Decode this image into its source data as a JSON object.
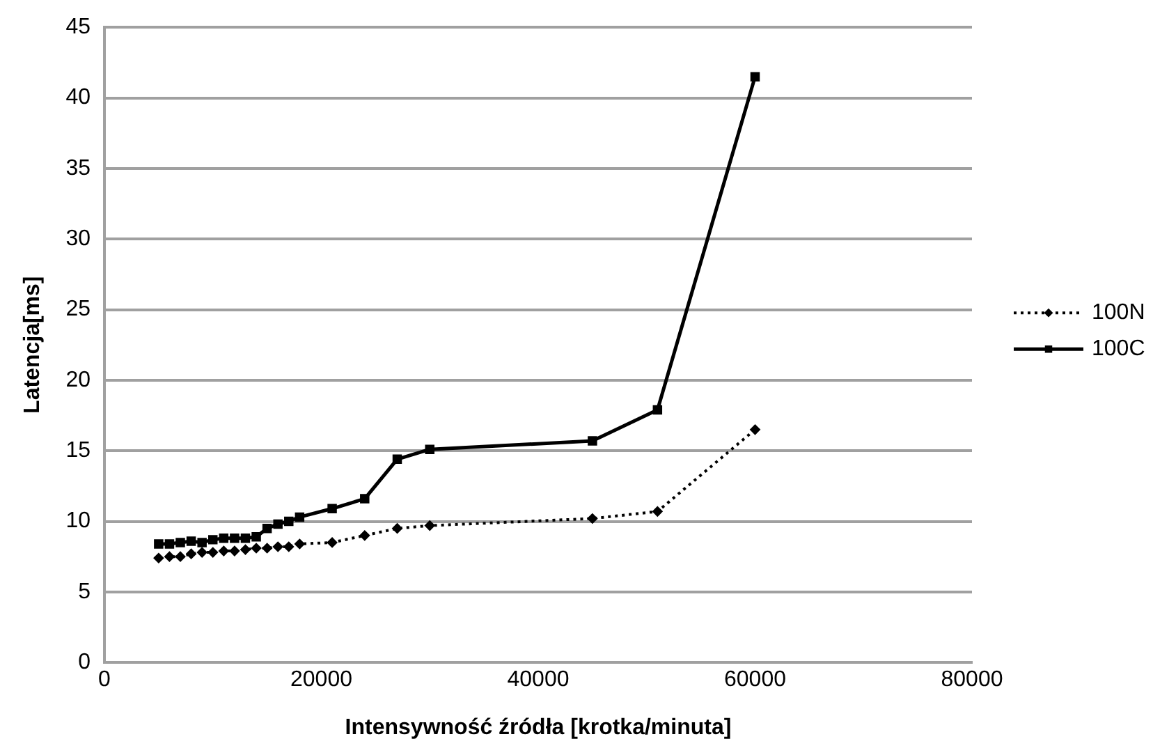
{
  "chart_data": {
    "type": "line",
    "xlabel": "Intensywność źródła [krotka/minuta]",
    "ylabel": "Latencja[ms]",
    "x": [
      5000,
      6000,
      7000,
      8000,
      9000,
      10000,
      11000,
      12000,
      13000,
      14000,
      15000,
      16000,
      17000,
      18000,
      21000,
      24000,
      27000,
      30000,
      45000,
      51000,
      60000
    ],
    "series": [
      {
        "name": "100N",
        "color": "#000000",
        "line_style": "dotted",
        "marker": "diamond",
        "values": [
          7.4,
          7.5,
          7.5,
          7.7,
          7.8,
          7.8,
          7.9,
          7.9,
          8.0,
          8.1,
          8.1,
          8.2,
          8.2,
          8.4,
          8.5,
          9.0,
          9.5,
          9.7,
          10.2,
          10.7,
          16.5
        ]
      },
      {
        "name": "100C",
        "color": "#000000",
        "line_style": "solid",
        "marker": "square",
        "values": [
          8.4,
          8.4,
          8.5,
          8.6,
          8.5,
          8.7,
          8.8,
          8.8,
          8.8,
          8.9,
          9.5,
          9.8,
          10.0,
          10.3,
          10.9,
          11.6,
          14.4,
          15.1,
          15.7,
          17.9,
          41.5
        ]
      }
    ],
    "xlim": [
      0,
      80000
    ],
    "xticks": [
      0,
      20000,
      40000,
      60000,
      80000
    ],
    "ylim": [
      0,
      45
    ],
    "yticks": [
      0,
      5,
      10,
      15,
      20,
      25,
      30,
      35,
      40,
      45
    ],
    "grid": "y",
    "legend": "right"
  }
}
